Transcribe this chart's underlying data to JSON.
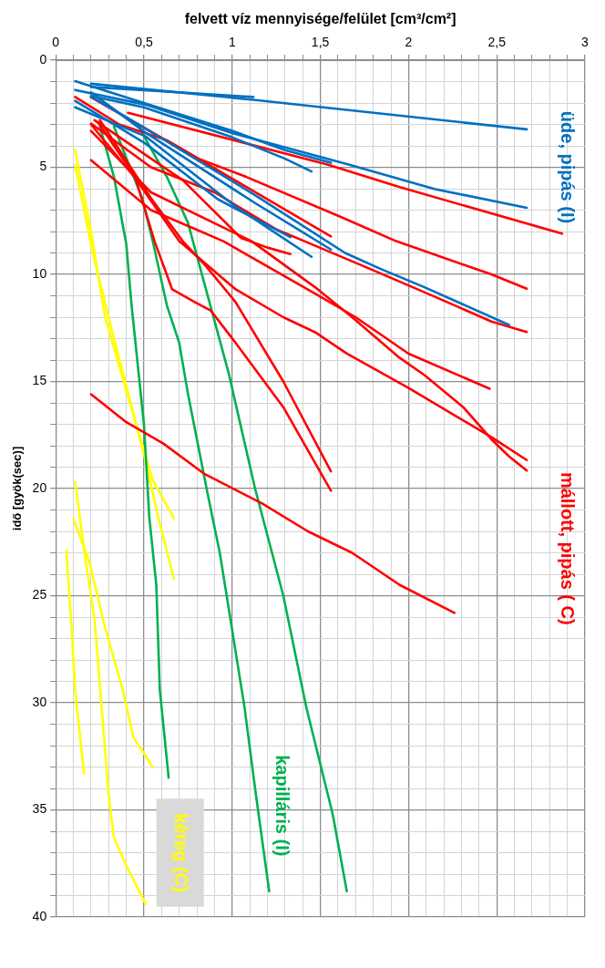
{
  "chart_data": {
    "type": "line",
    "xlabel": "felvett víz mennyisége/felület [cm³/cm²]",
    "ylabel": "idő [gyök(sec)]",
    "xlim": [
      0,
      3
    ],
    "ylim": [
      40,
      0
    ],
    "xticks": [
      0,
      {
        "value": 0.1,
        "label": null
      },
      {
        "value": 0.2,
        "label": null
      },
      {
        "value": 0.3,
        "label": null
      },
      {
        "value": 0.4,
        "label": null
      },
      {
        "value": 0.5,
        "label": "0,5"
      },
      {
        "value": 0.6,
        "label": null
      },
      {
        "value": 0.7,
        "label": null
      },
      {
        "value": 0.8,
        "label": null
      },
      {
        "value": 0.9,
        "label": null
      },
      1,
      {
        "value": 1.1,
        "label": null
      },
      {
        "value": 1.2,
        "label": null
      },
      {
        "value": 1.3,
        "label": null
      },
      {
        "value": 1.4,
        "label": null
      },
      {
        "value": 1.5,
        "label": "1,5"
      },
      {
        "value": 1.6,
        "label": null
      },
      {
        "value": 1.7,
        "label": null
      },
      {
        "value": 1.8,
        "label": null
      },
      {
        "value": 1.9,
        "label": null
      },
      2,
      {
        "value": 2.1,
        "label": null
      },
      {
        "value": 2.2,
        "label": null
      },
      {
        "value": 2.3,
        "label": null
      },
      {
        "value": 2.4,
        "label": null
      },
      {
        "value": 2.5,
        "label": "2,5"
      },
      {
        "value": 2.6,
        "label": null
      },
      {
        "value": 2.7,
        "label": null
      },
      {
        "value": 2.8,
        "label": null
      },
      {
        "value": 2.9,
        "label": null
      },
      3
    ],
    "yticks": [
      0,
      {
        "value": 1,
        "label": null
      },
      {
        "value": 2,
        "label": null
      },
      {
        "value": 3,
        "label": null
      },
      {
        "value": 4,
        "label": null
      },
      5,
      {
        "value": 6,
        "label": null
      },
      {
        "value": 7,
        "label": null
      },
      {
        "value": 8,
        "label": null
      },
      {
        "value": 9,
        "label": null
      },
      10,
      {
        "value": 11,
        "label": null
      },
      {
        "value": 12,
        "label": null
      },
      {
        "value": 13,
        "label": null
      },
      {
        "value": 14,
        "label": null
      },
      15,
      {
        "value": 16,
        "label": null
      },
      {
        "value": 17,
        "label": null
      },
      {
        "value": 18,
        "label": null
      },
      {
        "value": 19,
        "label": null
      },
      20,
      {
        "value": 21,
        "label": null
      },
      {
        "value": 22,
        "label": null
      },
      {
        "value": 23,
        "label": null
      },
      {
        "value": 24,
        "label": null
      },
      25,
      {
        "value": 26,
        "label": null
      },
      {
        "value": 27,
        "label": null
      },
      {
        "value": 28,
        "label": null
      },
      {
        "value": 29,
        "label": null
      },
      30,
      {
        "value": 31,
        "label": null
      },
      {
        "value": 32,
        "label": null
      },
      {
        "value": 33,
        "label": null
      },
      {
        "value": 34,
        "label": null
      },
      35,
      {
        "value": 36,
        "label": null
      },
      {
        "value": 37,
        "label": null
      },
      {
        "value": 38,
        "label": null
      },
      {
        "value": 39,
        "label": null
      },
      40
    ],
    "grid": true,
    "marker": "none",
    "line_style": "solid",
    "series": [
      {
        "name": "üde, pipás (I)",
        "color": "#0070c0",
        "values": [
          1.1,
          1.85,
          3.23
        ],
        "x": [
          0.2,
          1.12,
          2.67
        ]
      },
      {
        "color": "#0070c0",
        "values": [
          1.25,
          1.72
        ],
        "x": [
          0.2,
          1.12
        ]
      },
      {
        "color": "#0070c0",
        "values": [
          1.39,
          2.08,
          3.4,
          4.87,
          6.02,
          6.89
        ],
        "x": [
          0.11,
          0.51,
          1.0,
          1.66,
          2.15,
          2.67
        ]
      },
      {
        "color": "#0070c0",
        "values": [
          0.98,
          2.0,
          3.3,
          4.2,
          4.79
        ],
        "x": [
          0.11,
          0.5,
          1.0,
          1.3,
          1.56
        ]
      },
      {
        "color": "#0070c0",
        "values": [
          1.67,
          2.2,
          3.6,
          4.6,
          5.2
        ],
        "x": [
          0.2,
          0.5,
          1.0,
          1.3,
          1.45
        ]
      },
      {
        "color": "#0070c0",
        "values": [
          1.9,
          3.9,
          6.5,
          8.26
        ],
        "x": [
          0.11,
          0.51,
          0.92,
          1.33
        ]
      },
      {
        "color": "#0070c0",
        "values": [
          2.2,
          3.56,
          6.84,
          9.18
        ],
        "x": [
          0.11,
          0.51,
          1.02,
          1.45
        ]
      },
      {
        "color": "#0070c0",
        "values": [
          1.5,
          3.39,
          6.67,
          8.84
        ],
        "x": [
          0.2,
          0.51,
          1.13,
          1.56
        ]
      },
      {
        "color": "#0070c0",
        "values": [
          1.7,
          3.2,
          6.3,
          9.0,
          9.74,
          10.6,
          12.36
        ],
        "x": [
          0.2,
          0.51,
          1.13,
          1.64,
          1.84,
          2.09,
          2.57
        ]
      },
      {
        "name": "mállott, pipás ( C)",
        "color": "#ff0000",
        "values": [
          2.46,
          4.87,
          5.93,
          8.1
        ],
        "x": [
          0.41,
          1.54,
          1.95,
          2.87
        ]
      },
      {
        "color": "#ff0000",
        "values": [
          1.72,
          3.0,
          3.74,
          4.6,
          5.45,
          7.3,
          8.45,
          10.0,
          10.67
        ],
        "x": [
          0.11,
          0.36,
          0.63,
          0.81,
          1.08,
          1.61,
          1.93,
          2.47,
          2.67
        ]
      },
      {
        "color": "#ff0000",
        "values": [
          1.73,
          5.0,
          8.23
        ],
        "x": [
          0.2,
          0.89,
          1.56
        ]
      },
      {
        "color": "#ff0000",
        "values": [
          2.96,
          5.0,
          6.17,
          7.9,
          8.45,
          9.74,
          11.05,
          12.2,
          12.69
        ],
        "x": [
          0.2,
          0.54,
          0.9,
          1.25,
          1.41,
          1.78,
          2.15,
          2.47,
          2.67
        ]
      },
      {
        "color": "#ff0000",
        "values": [
          2.8,
          5.6,
          8.3,
          8.75,
          9.05
        ],
        "x": [
          0.22,
          0.72,
          1.05,
          1.2,
          1.33
        ]
      },
      {
        "color": "#ff0000",
        "values": [
          4.67,
          7.0,
          8.45,
          10.9,
          12.0,
          13.7,
          15.34
        ],
        "x": [
          0.2,
          0.54,
          0.95,
          1.47,
          1.7,
          2.0,
          2.46
        ]
      },
      {
        "color": "#ff0000",
        "values": [
          3.3,
          6.17,
          8.45,
          10.6,
          12.0,
          13.9,
          14.7,
          16.2,
          17.7,
          18.5,
          19.16
        ],
        "x": [
          0.2,
          0.54,
          1.11,
          1.47,
          1.68,
          1.95,
          2.09,
          2.31,
          2.47,
          2.57,
          2.67
        ]
      },
      {
        "color": "#ff0000",
        "values": [
          3.0,
          5.5,
          8.45,
          10.7,
          12.0,
          12.7,
          13.7,
          15.3,
          17.6,
          18.67
        ],
        "x": [
          0.2,
          0.45,
          0.7,
          1.02,
          1.29,
          1.47,
          1.65,
          2.0,
          2.47,
          2.67
        ]
      },
      {
        "color": "#ff0000",
        "values": [
          2.9,
          5.45,
          8.45,
          10.7,
          11.3,
          11.7,
          13.2,
          16.2,
          20.1
        ],
        "x": [
          0.24,
          0.45,
          0.56,
          0.66,
          0.79,
          0.88,
          1.02,
          1.29,
          1.56
        ]
      },
      {
        "color": "#ff0000",
        "values": [
          2.8,
          6.45,
          8.45,
          9.6,
          11.3,
          15.0,
          19.2
        ],
        "x": [
          0.25,
          0.54,
          0.72,
          0.85,
          1.02,
          1.29,
          1.56
        ]
      },
      {
        "color": "#ff0000",
        "values": [
          15.6,
          16.9,
          17.9,
          19.3,
          20.7,
          22.0,
          23.0,
          24.5,
          25.8
        ],
        "x": [
          0.2,
          0.4,
          0.61,
          0.84,
          1.17,
          1.43,
          1.68,
          1.95,
          2.26
        ]
      },
      {
        "name": "kapilláris (I)",
        "color": "#00b050",
        "values": [
          3.1,
          5.45,
          8.6,
          11.45,
          17.0,
          21.3,
          24.5,
          29.4,
          33.5
        ],
        "x": [
          0.25,
          0.33,
          0.4,
          0.43,
          0.5,
          0.53,
          0.57,
          0.59,
          0.64
        ]
      },
      {
        "color": "#00b050",
        "values": [
          3.1,
          6.45,
          8.45,
          11.45,
          13.2,
          15.6,
          20.2,
          23.0,
          26.6,
          30.2,
          34.0,
          38.8
        ],
        "x": [
          0.33,
          0.49,
          0.55,
          0.63,
          0.7,
          0.75,
          0.86,
          0.93,
          1.0,
          1.07,
          1.13,
          1.21
        ]
      },
      {
        "color": "#00b050",
        "values": [
          3.1,
          5.45,
          7.6,
          9.74,
          14.6,
          20.0,
          25.0,
          30.2,
          35.2,
          38.8
        ],
        "x": [
          0.47,
          0.63,
          0.75,
          0.82,
          0.98,
          1.13,
          1.29,
          1.42,
          1.57,
          1.65
        ]
      },
      {
        "name": "kéreg (C)",
        "color": "#ffff00",
        "values": [
          4.2,
          8.0,
          12.0,
          16.0,
          19.6,
          21.4
        ],
        "x": [
          0.11,
          0.2,
          0.28,
          0.42,
          0.55,
          0.67
        ]
      },
      {
        "color": "#ffff00",
        "values": [
          4.9,
          9.0,
          13.0,
          18.4,
          21.3,
          24.2
        ],
        "x": [
          0.11,
          0.21,
          0.33,
          0.5,
          0.58,
          0.67
        ]
      },
      {
        "color": "#ffff00",
        "values": [
          19.7,
          23.4,
          26.1,
          30.2,
          34.3,
          36.3,
          37.6,
          39.4
        ],
        "x": [
          0.11,
          0.17,
          0.22,
          0.26,
          0.3,
          0.33,
          0.4,
          0.51
        ]
      },
      {
        "color": "#ffff00",
        "values": [
          21.4,
          23.4,
          26.5,
          29.4,
          31.6,
          33.0
        ],
        "x": [
          0.1,
          0.19,
          0.28,
          0.38,
          0.44,
          0.55
        ]
      },
      {
        "color": "#ffff00",
        "values": [
          22.9,
          26.5,
          29.4,
          33.3
        ],
        "x": [
          0.06,
          0.09,
          0.11,
          0.16
        ]
      }
    ]
  }
}
